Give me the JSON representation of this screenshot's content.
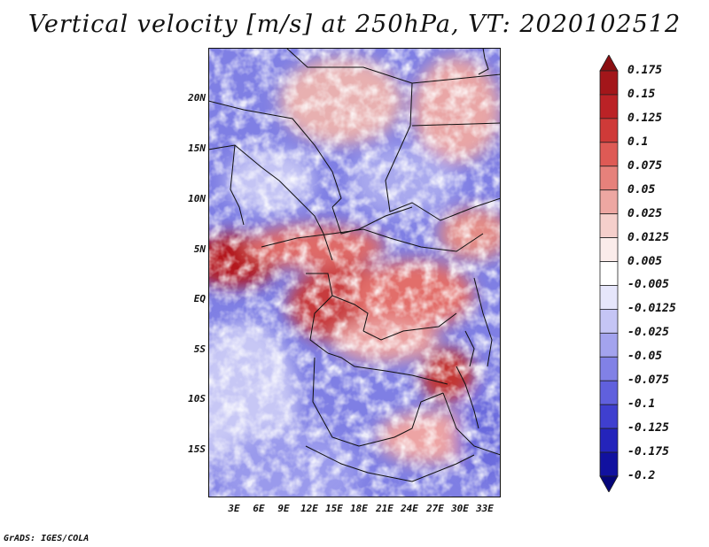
{
  "title": "Vertical velocity [m/s] at 250hPa, VT: 2020102512",
  "footer": "GrADS: IGES/COLA",
  "map": {
    "lat_labels": [
      "20N",
      "15N",
      "10N",
      "5N",
      "EQ",
      "5S",
      "10S",
      "15S"
    ],
    "lon_labels": [
      "3E",
      "6E",
      "9E",
      "12E",
      "15E",
      "18E",
      "21E",
      "24E",
      "27E",
      "30E",
      "33E"
    ]
  },
  "colorbar": {
    "labels": [
      "0.175",
      "0.15",
      "0.125",
      "0.1",
      "0.075",
      "0.05",
      "0.025",
      "0.0125",
      "0.005",
      "-0.005",
      "-0.0125",
      "-0.025",
      "-0.05",
      "-0.075",
      "-0.1",
      "-0.125",
      "-0.175",
      "-0.2"
    ],
    "colors": [
      "#8b0f12",
      "#a3161a",
      "#bb2226",
      "#cf3a38",
      "#de5a55",
      "#e6817b",
      "#eda7a2",
      "#f5cfcb",
      "#fbecea",
      "#ffffff",
      "#e6e6fb",
      "#c5c5f5",
      "#a3a3ee",
      "#8181e6",
      "#6060dd",
      "#3f3fcf",
      "#2424bb",
      "#11119f",
      "#05057a"
    ]
  }
}
